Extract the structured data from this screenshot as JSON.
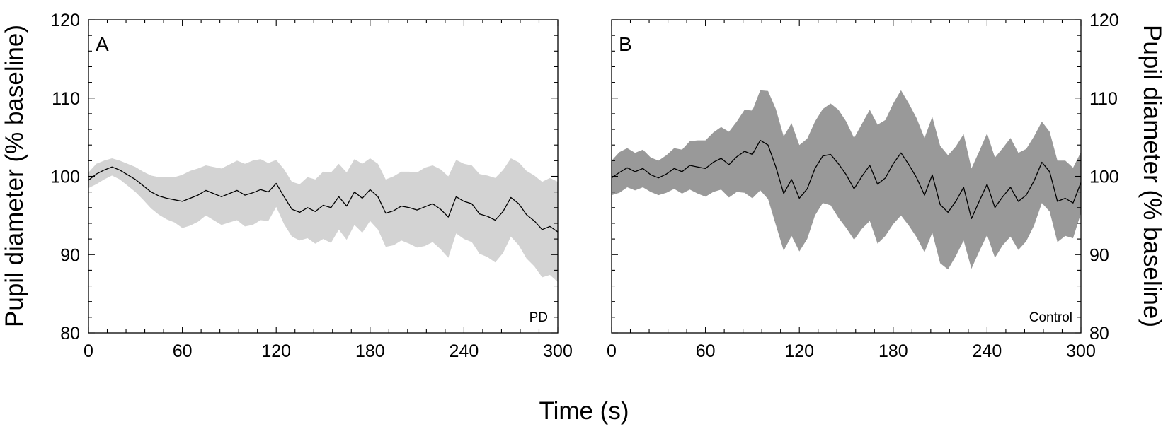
{
  "figure": {
    "xlabel": "Time (s)"
  },
  "chart_data": [
    {
      "type": "line",
      "panel_label": "A",
      "group_label": "PD",
      "ylabel": "Pupil diameter (% baseline)",
      "ylabel_side": "left",
      "xlim": [
        0,
        300
      ],
      "ylim": [
        80,
        120
      ],
      "xticks": [
        0,
        60,
        120,
        180,
        240,
        300
      ],
      "yticks": [
        80,
        90,
        100,
        110,
        120
      ],
      "grid": false,
      "band_color": "#d3d3d3",
      "line_color": "#000000",
      "series": [
        {
          "x": [
            0,
            5,
            10,
            15,
            20,
            25,
            30,
            35,
            40,
            45,
            50,
            55,
            60,
            65,
            70,
            75,
            80,
            85,
            90,
            95,
            100,
            105,
            110,
            115,
            120,
            125,
            130,
            135,
            140,
            145,
            150,
            155,
            160,
            165,
            170,
            175,
            180,
            185,
            190,
            195,
            200,
            205,
            210,
            215,
            220,
            225,
            230,
            235,
            240,
            245,
            250,
            255,
            260,
            265,
            270,
            275,
            280,
            285,
            290,
            295,
            300
          ],
          "mean": [
            99.5,
            100.3,
            100.8,
            101.2,
            100.8,
            100.2,
            99.6,
            98.8,
            98.0,
            97.5,
            97.2,
            97.0,
            96.8,
            97.2,
            97.6,
            98.2,
            97.8,
            97.4,
            97.8,
            98.2,
            97.6,
            97.9,
            98.3,
            98.0,
            99.1,
            97.4,
            95.8,
            95.4,
            96.0,
            95.5,
            96.3,
            96.0,
            97.4,
            96.2,
            98.0,
            97.2,
            98.3,
            97.4,
            95.3,
            95.6,
            96.2,
            96.0,
            95.7,
            96.1,
            96.5,
            95.8,
            94.8,
            97.4,
            96.8,
            96.5,
            95.2,
            94.9,
            94.4,
            95.5,
            97.3,
            96.5,
            95.1,
            94.3,
            93.2,
            93.6,
            92.9
          ],
          "upper": [
            100.5,
            101.6,
            102.0,
            102.3,
            102.0,
            101.6,
            101.2,
            100.6,
            100.1,
            99.9,
            99.9,
            99.9,
            100.2,
            100.7,
            101.0,
            101.4,
            101.2,
            101.0,
            101.5,
            102.0,
            101.6,
            102.0,
            102.2,
            101.7,
            102.1,
            100.9,
            99.3,
            99.0,
            99.9,
            99.6,
            100.6,
            100.5,
            101.6,
            100.5,
            102.2,
            101.6,
            102.3,
            101.6,
            99.6,
            100.0,
            100.6,
            100.6,
            100.5,
            101.1,
            101.4,
            100.9,
            100.0,
            102.1,
            101.6,
            101.4,
            100.3,
            100.1,
            99.8,
            100.8,
            102.3,
            101.8,
            100.7,
            100.1,
            99.3,
            99.8,
            99.3
          ],
          "lower": [
            98.5,
            99.0,
            99.6,
            100.1,
            99.6,
            98.8,
            98.0,
            97.0,
            95.9,
            95.1,
            94.5,
            94.1,
            93.4,
            93.7,
            94.2,
            95.0,
            94.4,
            93.8,
            94.1,
            94.4,
            93.6,
            93.8,
            94.4,
            94.3,
            96.1,
            93.9,
            92.3,
            91.8,
            92.1,
            91.4,
            92.0,
            91.5,
            93.2,
            91.9,
            93.8,
            92.8,
            94.3,
            93.2,
            91.0,
            91.2,
            91.8,
            91.4,
            90.9,
            91.1,
            91.6,
            90.7,
            89.6,
            92.7,
            92.0,
            91.6,
            90.1,
            89.7,
            89.0,
            90.2,
            92.3,
            91.2,
            89.5,
            88.5,
            87.1,
            87.4,
            86.5
          ]
        }
      ]
    },
    {
      "type": "line",
      "panel_label": "B",
      "group_label": "Control",
      "ylabel": "Pupil diameter (% baseline)",
      "ylabel_side": "right",
      "xlim": [
        0,
        300
      ],
      "ylim": [
        80,
        120
      ],
      "xticks": [
        0,
        60,
        120,
        180,
        240,
        300
      ],
      "yticks": [
        80,
        90,
        100,
        110,
        120
      ],
      "grid": false,
      "band_color": "#999999",
      "line_color": "#000000",
      "series": [
        {
          "x": [
            0,
            5,
            10,
            15,
            20,
            25,
            30,
            35,
            40,
            45,
            50,
            55,
            60,
            65,
            70,
            75,
            80,
            85,
            90,
            95,
            100,
            105,
            110,
            115,
            120,
            125,
            130,
            135,
            140,
            145,
            150,
            155,
            160,
            165,
            170,
            175,
            180,
            185,
            190,
            195,
            200,
            205,
            210,
            215,
            220,
            225,
            230,
            235,
            240,
            245,
            250,
            255,
            260,
            265,
            270,
            275,
            280,
            285,
            290,
            295,
            300
          ],
          "mean": [
            99.8,
            100.5,
            101.1,
            100.6,
            101.0,
            100.2,
            99.8,
            100.3,
            101.0,
            100.6,
            101.4,
            101.2,
            101.0,
            101.8,
            102.3,
            101.5,
            102.5,
            103.2,
            102.8,
            104.6,
            104.0,
            101.2,
            97.8,
            99.6,
            97.2,
            98.4,
            101.0,
            102.6,
            102.8,
            101.6,
            100.2,
            98.4,
            100.0,
            101.4,
            99.0,
            99.8,
            101.6,
            103.0,
            101.5,
            99.8,
            97.6,
            100.2,
            96.4,
            95.4,
            96.8,
            98.6,
            94.6,
            96.8,
            99.0,
            96.0,
            97.4,
            98.6,
            96.8,
            97.6,
            99.4,
            101.8,
            100.6,
            96.8,
            97.2,
            96.6,
            99.2
          ],
          "upper": [
            102.0,
            103.1,
            103.6,
            103.0,
            103.4,
            102.4,
            102.0,
            102.7,
            103.6,
            103.4,
            104.5,
            104.6,
            104.6,
            105.6,
            106.3,
            105.7,
            107.0,
            108.5,
            108.4,
            111.0,
            110.9,
            108.6,
            105.1,
            106.8,
            104.0,
            104.8,
            107.0,
            108.6,
            109.3,
            108.5,
            107.0,
            104.9,
            106.7,
            108.5,
            106.6,
            107.2,
            109.3,
            111.0,
            109.3,
            107.4,
            104.9,
            107.6,
            103.9,
            102.7,
            103.8,
            105.4,
            101.0,
            103.2,
            105.5,
            102.4,
            103.6,
            104.9,
            103.0,
            103.5,
            105.1,
            107.0,
            105.7,
            102.0,
            102.0,
            101.1,
            103.1
          ],
          "lower": [
            97.6,
            97.9,
            98.6,
            98.2,
            98.6,
            98.0,
            97.6,
            97.9,
            98.4,
            97.8,
            98.3,
            97.8,
            97.4,
            98.0,
            98.3,
            97.3,
            98.0,
            97.9,
            97.2,
            98.2,
            97.1,
            93.8,
            90.5,
            92.4,
            90.4,
            92.0,
            95.0,
            96.6,
            96.3,
            94.7,
            93.4,
            91.9,
            93.3,
            94.3,
            91.4,
            92.4,
            93.9,
            95.0,
            93.7,
            92.2,
            90.3,
            92.8,
            88.9,
            88.1,
            89.8,
            91.8,
            88.2,
            90.4,
            92.5,
            89.6,
            91.2,
            92.3,
            90.6,
            91.7,
            93.7,
            96.6,
            95.5,
            91.6,
            92.4,
            92.1,
            95.3
          ]
        }
      ]
    }
  ]
}
